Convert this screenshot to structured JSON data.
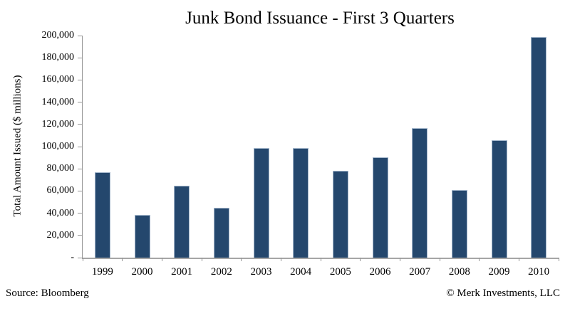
{
  "chart_data": {
    "type": "bar",
    "title": "Junk Bond Issuance - First 3 Quarters",
    "xlabel": "",
    "ylabel": "Total Amount Issued ($ millions)",
    "categories": [
      "1999",
      "2000",
      "2001",
      "2002",
      "2003",
      "2004",
      "2005",
      "2006",
      "2007",
      "2008",
      "2009",
      "2010"
    ],
    "values": [
      77000,
      38500,
      64500,
      45000,
      99000,
      98500,
      78000,
      90500,
      116500,
      61000,
      105500,
      198500
    ],
    "ylim": [
      0,
      200000
    ],
    "ytick_step": 20000,
    "ytick_labels_bottom_to_top": [
      "-",
      "20,000",
      "40,000",
      "60,000",
      "80,000",
      "100,000",
      "120,000",
      "140,000",
      "160,000",
      "180,000",
      "200,000"
    ],
    "grid": false,
    "legend": "none",
    "bar_color": "#24476d",
    "bar_border_color": "#a3b6cb",
    "axis_color": "#949494"
  },
  "footer": {
    "source": "Source: Bloomberg",
    "copyright": "© Merk Investments, LLC"
  }
}
